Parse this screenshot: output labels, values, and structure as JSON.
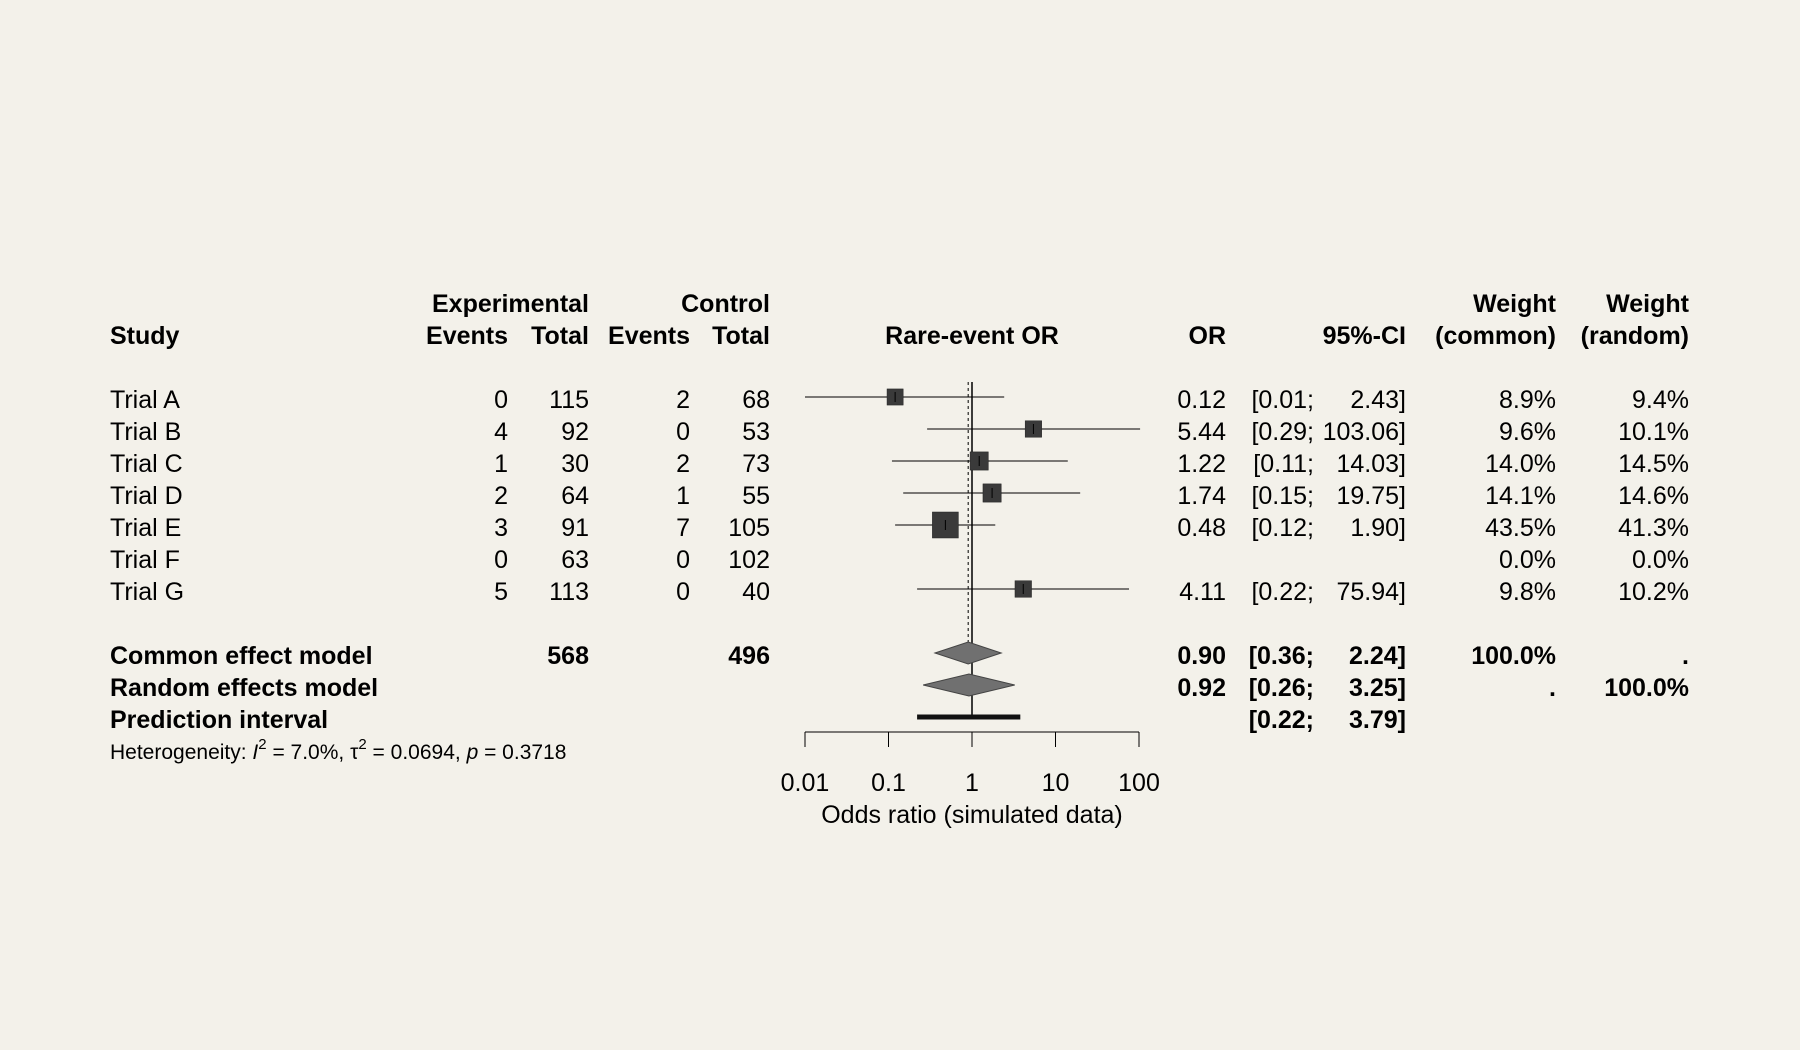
{
  "chart_data": {
    "type": "forest",
    "xscale": "log",
    "xlim": [
      0.01,
      100
    ],
    "xticks": [
      0.01,
      0.1,
      1,
      10,
      100
    ],
    "xtick_labels": [
      "0.01",
      "0.1",
      "1",
      "10",
      "100"
    ],
    "xlabel": "Odds ratio (simulated data)",
    "reference_line": 1,
    "common_effect_line": 0.9,
    "headers": {
      "study": "Study",
      "experimental": "Experimental",
      "control": "Control",
      "events": "Events",
      "total": "Total",
      "effect": "Rare-event OR",
      "or": "OR",
      "ci": "95%-CI",
      "weight": "Weight",
      "common": "(common)",
      "random": "(random)"
    },
    "studies": [
      {
        "name": "Trial A",
        "e_events": "0",
        "e_total": "115",
        "c_events": "2",
        "c_total": "68",
        "or_label": "0.12",
        "ci_lower_label": "[0.01;",
        "ci_upper_label": "2.43]",
        "w_common": "8.9%",
        "w_random": "9.4%",
        "or": 0.12,
        "lower": 0.01,
        "upper": 2.43,
        "weight": 8.9
      },
      {
        "name": "Trial B",
        "e_events": "4",
        "e_total": "92",
        "c_events": "0",
        "c_total": "53",
        "or_label": "5.44",
        "ci_lower_label": "[0.29;",
        "ci_upper_label": "103.06]",
        "w_common": "9.6%",
        "w_random": "10.1%",
        "or": 5.44,
        "lower": 0.29,
        "upper": 103.06,
        "weight": 9.6
      },
      {
        "name": "Trial C",
        "e_events": "1",
        "e_total": "30",
        "c_events": "2",
        "c_total": "73",
        "or_label": "1.22",
        "ci_lower_label": "[0.11;",
        "ci_upper_label": "14.03]",
        "w_common": "14.0%",
        "w_random": "14.5%",
        "or": 1.22,
        "lower": 0.11,
        "upper": 14.03,
        "weight": 14.0
      },
      {
        "name": "Trial D",
        "e_events": "2",
        "e_total": "64",
        "c_events": "1",
        "c_total": "55",
        "or_label": "1.74",
        "ci_lower_label": "[0.15;",
        "ci_upper_label": "19.75]",
        "w_common": "14.1%",
        "w_random": "14.6%",
        "or": 1.74,
        "lower": 0.15,
        "upper": 19.75,
        "weight": 14.1
      },
      {
        "name": "Trial E",
        "e_events": "3",
        "e_total": "91",
        "c_events": "7",
        "c_total": "105",
        "or_label": "0.48",
        "ci_lower_label": "[0.12;",
        "ci_upper_label": "1.90]",
        "w_common": "43.5%",
        "w_random": "41.3%",
        "or": 0.48,
        "lower": 0.12,
        "upper": 1.9,
        "weight": 43.5
      },
      {
        "name": "Trial F",
        "e_events": "0",
        "e_total": "63",
        "c_events": "0",
        "c_total": "102",
        "or_label": "",
        "ci_lower_label": "",
        "ci_upper_label": "",
        "w_common": "0.0%",
        "w_random": "0.0%",
        "or": null,
        "lower": null,
        "upper": null,
        "weight": 0.0
      },
      {
        "name": "Trial G",
        "e_events": "5",
        "e_total": "113",
        "c_events": "0",
        "c_total": "40",
        "or_label": "4.11",
        "ci_lower_label": "[0.22;",
        "ci_upper_label": "75.94]",
        "w_common": "9.8%",
        "w_random": "10.2%",
        "or": 4.11,
        "lower": 0.22,
        "upper": 75.94,
        "weight": 9.8
      }
    ],
    "pooled": [
      {
        "name": "Common effect model",
        "e_total": "568",
        "c_total": "496",
        "or_label": "0.90",
        "ci_lower_label": "[0.36;",
        "ci_upper_label": "2.24]",
        "w_common": "100.0%",
        "w_random": ".",
        "or": 0.9,
        "lower": 0.36,
        "upper": 2.24
      },
      {
        "name": "Random effects model",
        "e_total": "",
        "c_total": "",
        "or_label": "0.92",
        "ci_lower_label": "[0.26;",
        "ci_upper_label": "3.25]",
        "w_common": ".",
        "w_random": "100.0%",
        "or": 0.92,
        "lower": 0.26,
        "upper": 3.25
      }
    ],
    "prediction": {
      "name": "Prediction interval",
      "ci_lower_label": "[0.22;",
      "ci_upper_label": "3.79]",
      "lower": 0.22,
      "upper": 3.79
    },
    "heterogeneity": {
      "prefix": "Heterogeneity: ",
      "i2_symbol": "I",
      "i2_value": " = 7.0%, ",
      "tau2_symbol": "τ",
      "tau2_value": " = 0.0694, ",
      "p_symbol": "p",
      "p_value": " = 0.3718",
      "sup": "2"
    }
  }
}
